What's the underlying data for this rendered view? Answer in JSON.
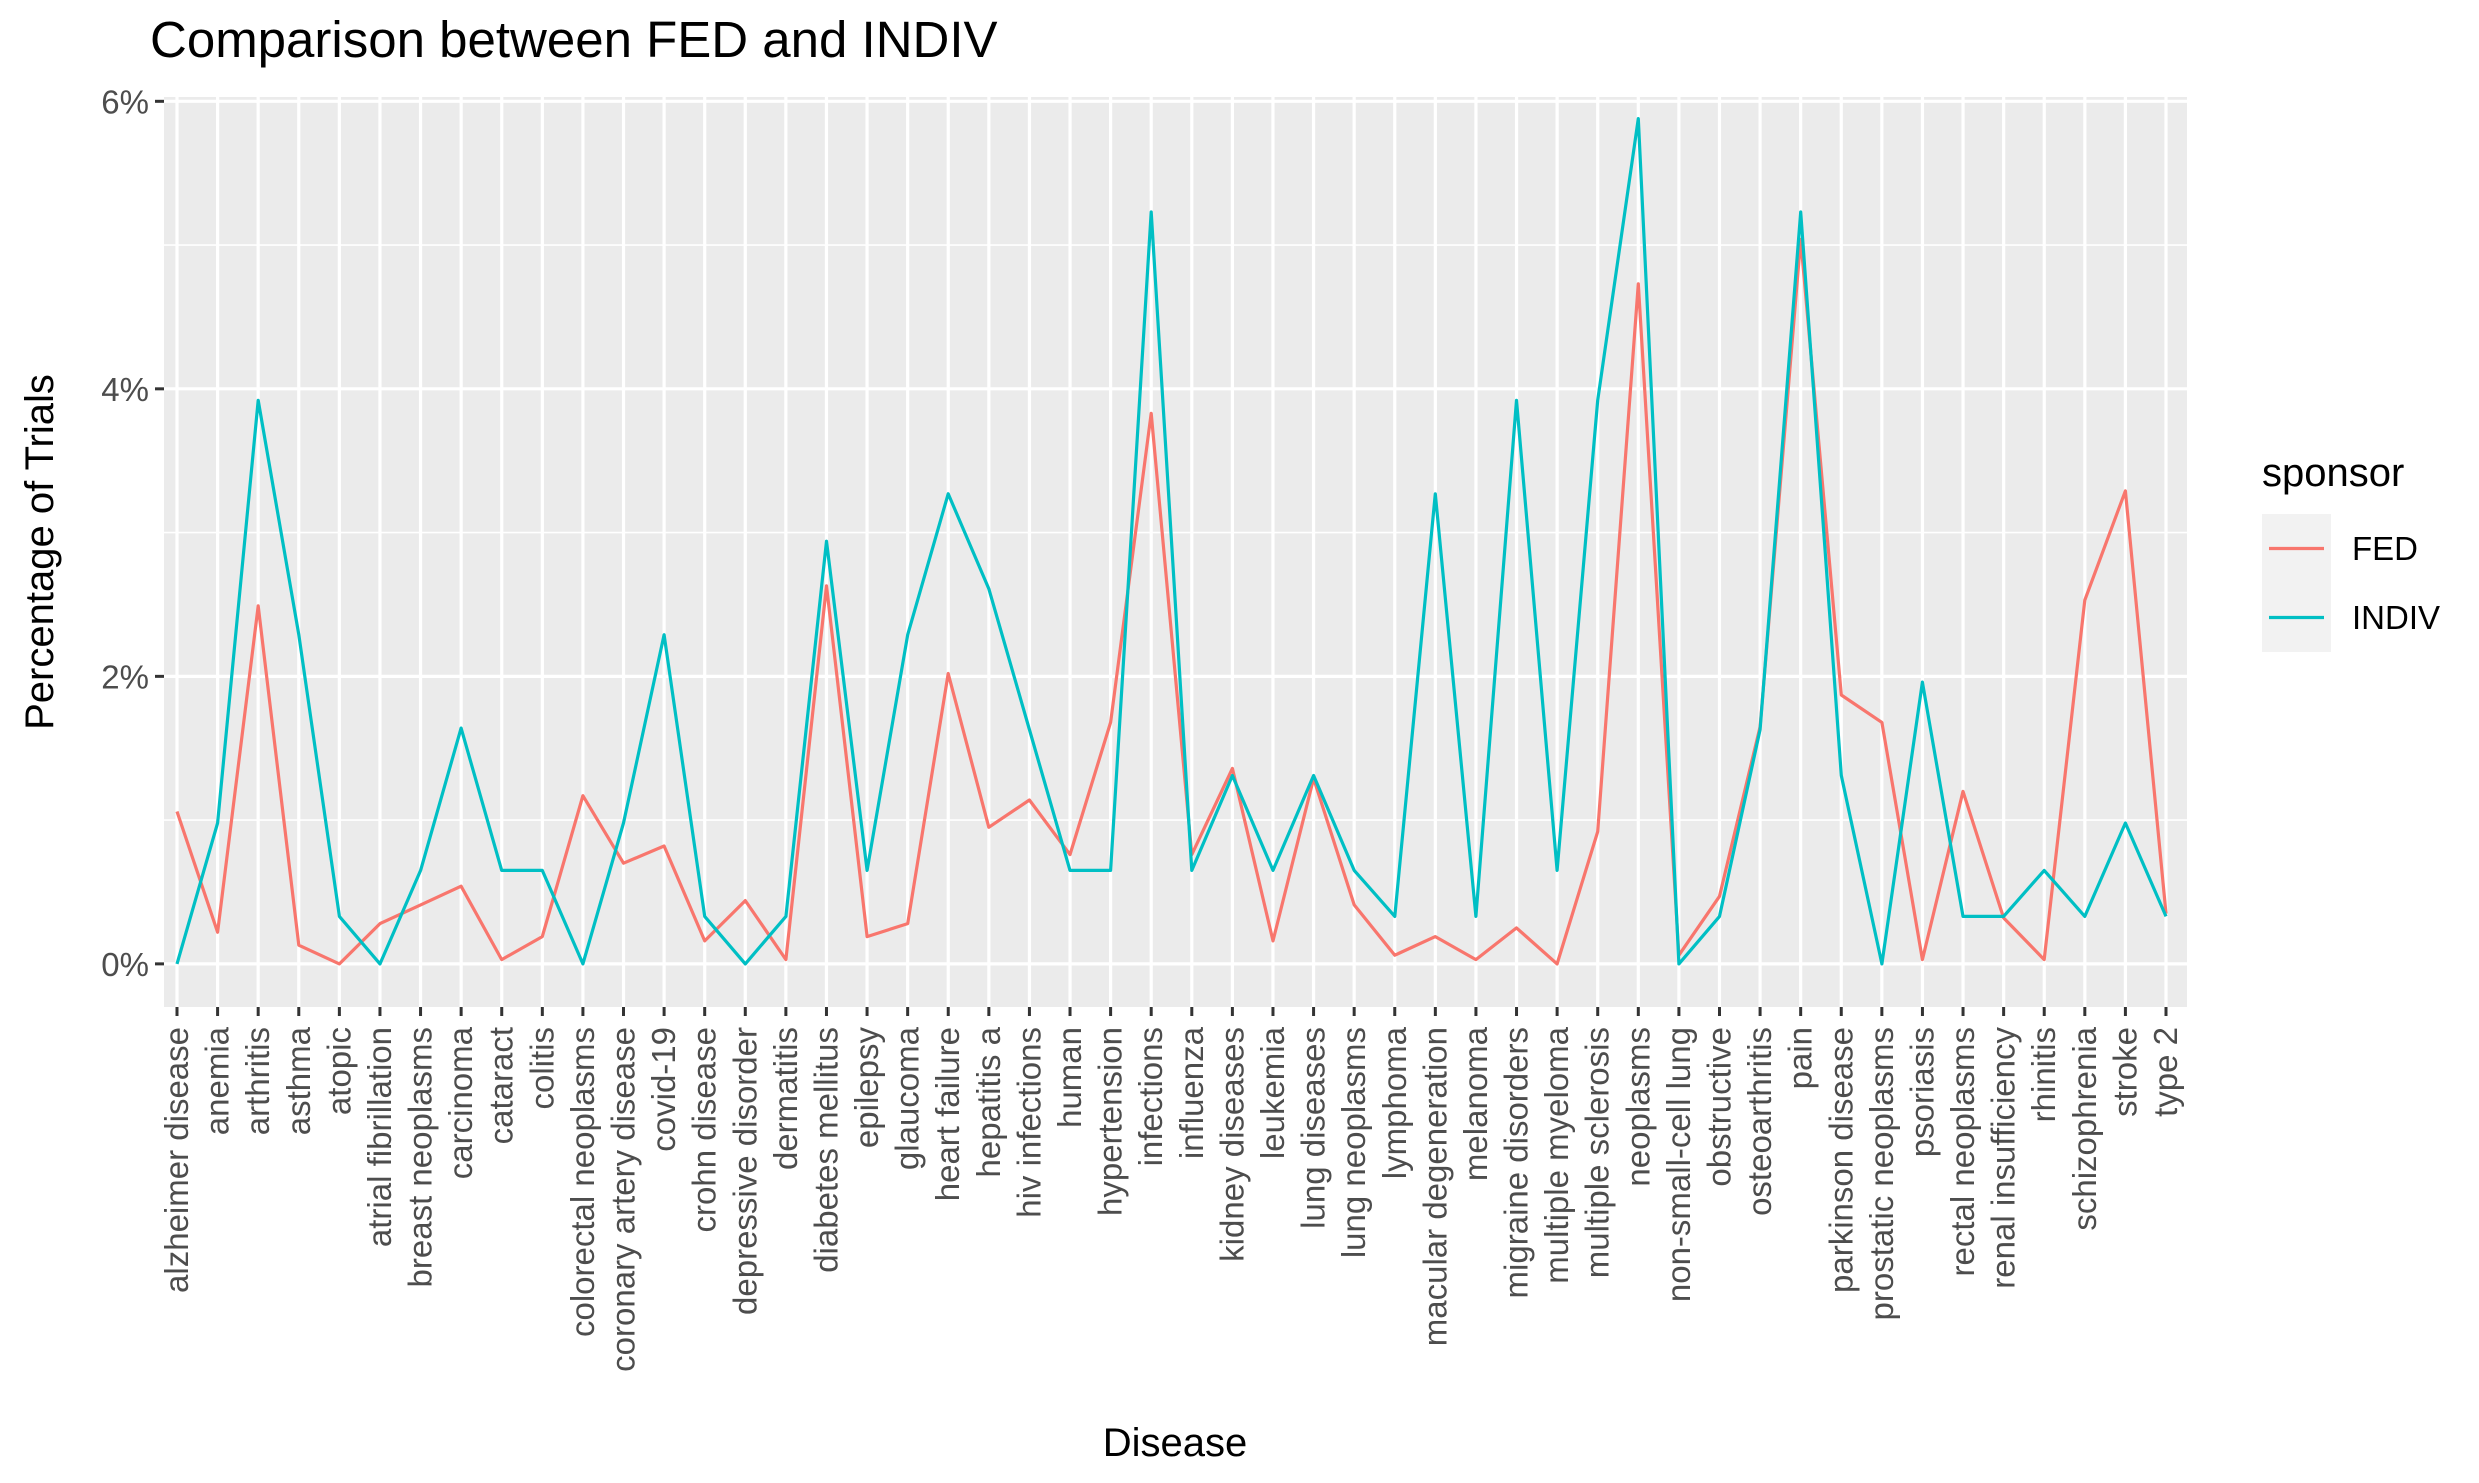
{
  "chart_data": {
    "type": "line",
    "title": "Comparison between FED and INDIV",
    "xlabel": "Disease",
    "ylabel": "Percentage of Trials",
    "ylim": [
      -0.003,
      0.0603
    ],
    "yticks": [
      0,
      0.02,
      0.04,
      0.06
    ],
    "ytick_labels": [
      "0%",
      "2%",
      "4%",
      "6%"
    ],
    "grid": true,
    "legend": {
      "title": "sponsor",
      "position": "right"
    },
    "categories": [
      "alzheimer disease",
      "anemia",
      "arthritis",
      "asthma",
      "atopic",
      "atrial fibrillation",
      "breast neoplasms",
      "carcinoma",
      "cataract",
      "colitis",
      "colorectal neoplasms",
      "coronary artery disease",
      "covid-19",
      "crohn disease",
      "depressive disorder",
      "dermatitis",
      "diabetes mellitus",
      "epilepsy",
      "glaucoma",
      "heart failure",
      "hepatitis a",
      "hiv infections",
      "human",
      "hypertension",
      "infections",
      "influenza",
      "kidney diseases",
      "leukemia",
      "lung diseases",
      "lung neoplasms",
      "lymphoma",
      "macular degeneration",
      "melanoma",
      "migraine disorders",
      "multiple myeloma",
      "multiple sclerosis",
      "neoplasms",
      "non-small-cell lung",
      "obstructive",
      "osteoarthritis",
      "pain",
      "parkinson disease",
      "prostatic neoplasms",
      "psoriasis",
      "rectal neoplasms",
      "renal insufficiency",
      "rhinitis",
      "schizophrenia",
      "stroke",
      "type 2"
    ],
    "series": [
      {
        "name": "FED",
        "color": "#F8766D",
        "values": [
          0.0106,
          0.0022,
          0.0249,
          0.0013,
          0.0,
          0.0028,
          0.0041,
          0.0054,
          0.0003,
          0.0019,
          0.0117,
          0.007,
          0.0082,
          0.0016,
          0.0044,
          0.0003,
          0.0263,
          0.0019,
          0.0028,
          0.0202,
          0.0095,
          0.0114,
          0.0076,
          0.0168,
          0.0383,
          0.0076,
          0.0136,
          0.0016,
          0.0129,
          0.0041,
          0.0006,
          0.0019,
          0.0003,
          0.0025,
          0.0,
          0.0092,
          0.0473,
          0.0006,
          0.0047,
          0.0165,
          0.0504,
          0.0187,
          0.0168,
          0.0003,
          0.012,
          0.0032,
          0.0003,
          0.0253,
          0.0329,
          0.0035
        ]
      },
      {
        "name": "INDIV",
        "color": "#00BFC4",
        "values": [
          0.0,
          0.0098,
          0.0392,
          0.0229,
          0.0033,
          0.0,
          0.0065,
          0.0164,
          0.0065,
          0.0065,
          0.0,
          0.0098,
          0.0229,
          0.0033,
          0.0,
          0.0033,
          0.0294,
          0.0065,
          0.0229,
          0.0327,
          0.0261,
          0.0163,
          0.0065,
          0.0065,
          0.0523,
          0.0065,
          0.0131,
          0.0065,
          0.0131,
          0.0065,
          0.0033,
          0.0327,
          0.0033,
          0.0392,
          0.0065,
          0.0392,
          0.0588,
          0.0,
          0.0033,
          0.0163,
          0.0523,
          0.0131,
          0.0,
          0.0196,
          0.0033,
          0.0033,
          0.0065,
          0.0033,
          0.0098,
          0.0033
        ]
      }
    ]
  }
}
